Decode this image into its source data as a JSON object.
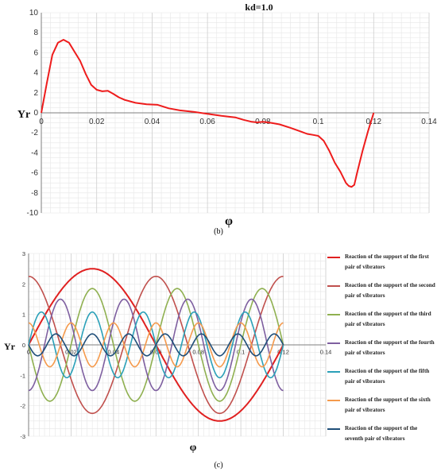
{
  "chart_data": [
    {
      "type": "line",
      "title": "kd=1.0",
      "xlabel": "φ",
      "ylabel": "Yr",
      "xlim": [
        0,
        0.14
      ],
      "ylim": [
        -10,
        10
      ],
      "xticks": [
        "0",
        "0.02",
        "0.04",
        "0.06",
        "0.08",
        "0.1",
        "0.12",
        "0.14"
      ],
      "yticks": [
        "10",
        "8",
        "6",
        "4",
        "2",
        "0",
        "-2",
        "-4",
        "-6",
        "-8",
        "-10"
      ],
      "grid": true,
      "series": [
        {
          "color": "#ee1c1c",
          "x": [
            0,
            0.002,
            0.004,
            0.006,
            0.008,
            0.01,
            0.012,
            0.014,
            0.016,
            0.018,
            0.02,
            0.022,
            0.024,
            0.026,
            0.028,
            0.03,
            0.034,
            0.038,
            0.042,
            0.046,
            0.05,
            0.055,
            0.06,
            0.065,
            0.07,
            0.073,
            0.076,
            0.078,
            0.08,
            0.083,
            0.086,
            0.09,
            0.094,
            0.096,
            0.098,
            0.1,
            0.102,
            0.104,
            0.106,
            0.108,
            0.11,
            0.111,
            0.112,
            0.113,
            0.114,
            0.116,
            0.118,
            0.12
          ],
          "y": [
            0,
            3.0,
            5.8,
            7.0,
            7.3,
            7.0,
            6.1,
            5.2,
            3.9,
            2.8,
            2.3,
            2.15,
            2.2,
            1.9,
            1.55,
            1.3,
            1.0,
            0.85,
            0.8,
            0.45,
            0.25,
            0.1,
            -0.1,
            -0.3,
            -0.45,
            -0.7,
            -0.9,
            -0.95,
            -0.9,
            -1.0,
            -1.15,
            -1.5,
            -1.9,
            -2.1,
            -2.2,
            -2.3,
            -2.8,
            -3.8,
            -5.0,
            -5.9,
            -7.0,
            -7.3,
            -7.4,
            -7.2,
            -6.0,
            -3.8,
            -1.8,
            0
          ]
        }
      ]
    },
    {
      "type": "line",
      "xlabel": "φ",
      "ylabel": "Yr",
      "xlim": [
        0,
        0.14
      ],
      "ylim": [
        -3,
        3
      ],
      "xticks": [
        "0",
        "0.02",
        "0.04",
        "0.06",
        "0.08",
        "0.1",
        "0.12",
        "0.14"
      ],
      "yticks": [
        "3",
        "2",
        "1",
        "0",
        "-1",
        "-2",
        "-3"
      ],
      "grid": true,
      "legend": "right",
      "series": [
        {
          "name": "Reaction of the support of the first pair of vibrators",
          "color": "#e02020",
          "amplitude": 2.5,
          "cycles": 1,
          "phase": 0
        },
        {
          "name": "Reaction of the support of the second pair of vibrators",
          "color": "#c0504d",
          "amplitude": 2.25,
          "cycles": 2,
          "phase": 90
        },
        {
          "name": "Reaction of the support of the third pair of vibrators",
          "color": "#8fb050",
          "amplitude": 1.85,
          "cycles": 3,
          "phase": 180
        },
        {
          "name": "Reaction of the support of the fourth pair of vibrators",
          "color": "#7e5fa0",
          "amplitude": 1.5,
          "cycles": 4,
          "phase": 270
        },
        {
          "name": "Reaction of the support of the fifth pair of vibrators",
          "color": "#2aa0b8",
          "amplitude": 1.08,
          "cycles": 5,
          "phase": 0
        },
        {
          "name": "Reaction of the support of the sixth pair of vibrators",
          "color": "#f59a4c",
          "amplitude": 0.72,
          "cycles": 6,
          "phase": 90
        },
        {
          "name": "Reaction of the support of the seventh pair of vibrators",
          "color": "#1f4e79",
          "amplitude": 0.36,
          "cycles": 7,
          "phase": 180
        }
      ]
    }
  ],
  "captions": [
    "(b)",
    "(c)"
  ]
}
